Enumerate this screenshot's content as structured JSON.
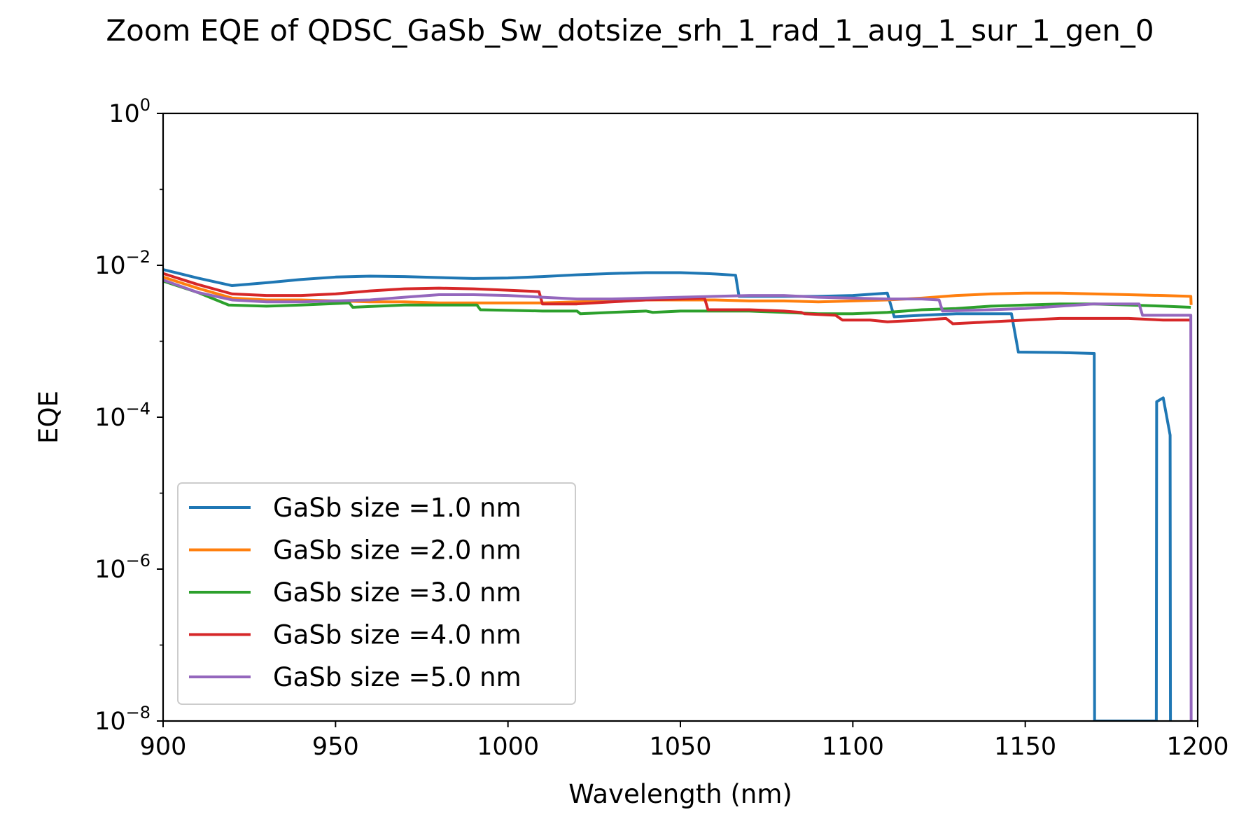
{
  "chart_data": {
    "type": "line",
    "title": "Zoom EQE of QDSC_GaSb_Sw_dotsize_srh_1_rad_1_aug_1_sur_1_gen_0",
    "xlabel": "Wavelength (nm)",
    "ylabel": "EQE",
    "xlim": [
      900,
      1200
    ],
    "ylim": [
      1e-08,
      1
    ],
    "yscale": "log",
    "grid": false,
    "legend_position": "lower-left",
    "x_ticks": [
      900,
      950,
      1000,
      1050,
      1100,
      1150,
      1200
    ],
    "x_tick_labels": [
      "900",
      "950",
      "1000",
      "1050",
      "1100",
      "1150",
      "1200"
    ],
    "y_ticks": [
      {
        "value": 1e-08,
        "base": "10",
        "exp": "−8"
      },
      {
        "value": 1e-06,
        "base": "10",
        "exp": "−6"
      },
      {
        "value": 0.0001,
        "base": "10",
        "exp": "−4"
      },
      {
        "value": 0.01,
        "base": "10",
        "exp": "−2"
      },
      {
        "value": 1,
        "base": "10",
        "exp": "0"
      }
    ],
    "series": [
      {
        "name": "GaSb size =1.0 nm",
        "color": "#1f77b4",
        "x": [
          900,
          910,
          920,
          930,
          940,
          950,
          960,
          970,
          980,
          990,
          1000,
          1010,
          1020,
          1030,
          1040,
          1050,
          1060,
          1066,
          1067,
          1070,
          1080,
          1090,
          1100,
          1110,
          1112,
          1120,
          1130,
          1140,
          1146,
          1148,
          1160,
          1170,
          1170.1,
          1188,
          1188.1,
          1190,
          1192,
          1192.1
        ],
        "y": [
          0.0088,
          0.0068,
          0.0054,
          0.0059,
          0.0065,
          0.007,
          0.0072,
          0.0071,
          0.0069,
          0.0067,
          0.0068,
          0.0071,
          0.0075,
          0.0078,
          0.008,
          0.008,
          0.0077,
          0.0074,
          0.0039,
          0.0039,
          0.0039,
          0.0039,
          0.004,
          0.0043,
          0.0021,
          0.0022,
          0.0023,
          0.0023,
          0.0023,
          0.00072,
          0.00071,
          0.00069,
          1e-08,
          1e-08,
          0.00016,
          0.00018,
          5.8e-05,
          1e-08
        ]
      },
      {
        "name": "GaSb size =2.0 nm",
        "color": "#ff7f0e",
        "x": [
          900,
          910,
          920,
          930,
          940,
          950,
          960,
          970,
          980,
          990,
          1000,
          1010,
          1020,
          1030,
          1040,
          1050,
          1060,
          1070,
          1080,
          1090,
          1100,
          1110,
          1120,
          1130,
          1140,
          1150,
          1160,
          1170,
          1180,
          1190,
          1198,
          1198.1
        ],
        "y": [
          0.007,
          0.005,
          0.0037,
          0.0035,
          0.0035,
          0.0034,
          0.0033,
          0.0033,
          0.0032,
          0.0032,
          0.0032,
          0.0032,
          0.0033,
          0.0034,
          0.0035,
          0.0035,
          0.0035,
          0.0034,
          0.0034,
          0.0033,
          0.0034,
          0.0035,
          0.0037,
          0.004,
          0.0042,
          0.0043,
          0.0043,
          0.0042,
          0.0041,
          0.004,
          0.0039,
          0.003
        ]
      },
      {
        "name": "GaSb size =3.0 nm",
        "color": "#2ca02c",
        "x": [
          900,
          910,
          919,
          930,
          940,
          954,
          955,
          970,
          980,
          991,
          992,
          1010,
          1020,
          1021,
          1030,
          1040,
          1042,
          1050,
          1060,
          1070,
          1080,
          1090,
          1100,
          1110,
          1120,
          1130,
          1140,
          1150,
          1160,
          1170,
          1180,
          1190,
          1198
        ],
        "y": [
          0.0062,
          0.0044,
          0.003,
          0.0029,
          0.003,
          0.0032,
          0.0028,
          0.003,
          0.003,
          0.003,
          0.0026,
          0.0025,
          0.0025,
          0.0023,
          0.0024,
          0.0025,
          0.0024,
          0.0025,
          0.0025,
          0.0025,
          0.0024,
          0.0023,
          0.0023,
          0.0024,
          0.0026,
          0.0027,
          0.0029,
          0.003,
          0.0031,
          0.0031,
          0.003,
          0.0029,
          0.0028
        ]
      },
      {
        "name": "GaSb size =4.0 nm",
        "color": "#d62728",
        "x": [
          900,
          910,
          920,
          930,
          940,
          950,
          960,
          970,
          980,
          990,
          1000,
          1009,
          1010,
          1020,
          1030,
          1040,
          1050,
          1057,
          1058,
          1070,
          1080,
          1085,
          1086,
          1095,
          1097,
          1105,
          1110,
          1120,
          1127,
          1129,
          1140,
          1150,
          1160,
          1170,
          1180,
          1190,
          1198
        ],
        "y": [
          0.0078,
          0.0056,
          0.0042,
          0.004,
          0.004,
          0.0042,
          0.0046,
          0.0049,
          0.005,
          0.0049,
          0.0047,
          0.0045,
          0.0031,
          0.0031,
          0.0033,
          0.0035,
          0.0036,
          0.0037,
          0.0026,
          0.0026,
          0.0025,
          0.0024,
          0.0023,
          0.0022,
          0.0019,
          0.0019,
          0.0018,
          0.0019,
          0.002,
          0.0017,
          0.0018,
          0.0019,
          0.002,
          0.002,
          0.002,
          0.0019,
          0.0019
        ]
      },
      {
        "name": "GaSb size =5.0 nm",
        "color": "#9467bd",
        "x": [
          900,
          910,
          920,
          930,
          940,
          950,
          960,
          970,
          980,
          990,
          1000,
          1010,
          1020,
          1030,
          1040,
          1050,
          1060,
          1070,
          1080,
          1090,
          1100,
          1110,
          1120,
          1125,
          1126,
          1140,
          1150,
          1160,
          1170,
          1183,
          1184,
          1190,
          1198,
          1198.1
        ],
        "y": [
          0.0064,
          0.0044,
          0.0035,
          0.0033,
          0.0033,
          0.0034,
          0.0035,
          0.0038,
          0.0041,
          0.0041,
          0.004,
          0.0038,
          0.0036,
          0.0036,
          0.0037,
          0.0038,
          0.0039,
          0.004,
          0.004,
          0.0038,
          0.0037,
          0.0036,
          0.0036,
          0.0035,
          0.0025,
          0.0026,
          0.0027,
          0.0029,
          0.0031,
          0.0031,
          0.0022,
          0.0022,
          0.0022,
          1e-08
        ]
      }
    ]
  }
}
